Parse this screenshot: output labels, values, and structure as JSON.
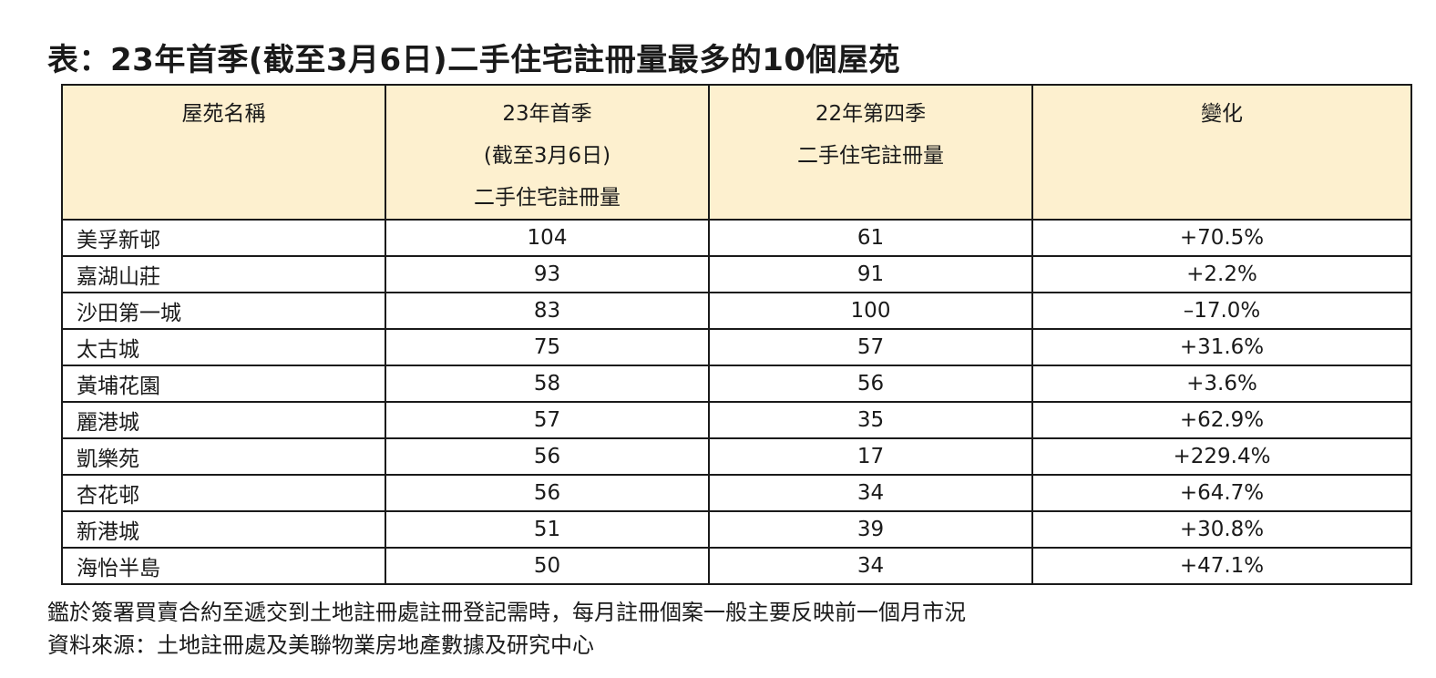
{
  "title": "表：23年首季(截至3月6日)二手住宅註冊量最多的10個屋苑",
  "table": {
    "headers": [
      [
        "屋苑名稱"
      ],
      [
        "23年首季",
        "(截至3月6日)",
        "二手住宅註冊量"
      ],
      [
        "22年第四季",
        "二手住宅註冊量"
      ],
      [
        "變化"
      ]
    ],
    "rows": [
      [
        "美孚新邨",
        "104",
        "61",
        "+70.5%"
      ],
      [
        "嘉湖山莊",
        "93",
        "91",
        "+2.2%"
      ],
      [
        "沙田第一城",
        "83",
        "100",
        "–17.0%"
      ],
      [
        "太古城",
        "75",
        "57",
        "+31.6%"
      ],
      [
        "黃埔花園",
        "58",
        "56",
        "+3.6%"
      ],
      [
        "麗港城",
        "57",
        "35",
        "+62.9%"
      ],
      [
        "凱樂苑",
        "56",
        "17",
        "+229.4%"
      ],
      [
        "杏花邨",
        "56",
        "34",
        "+64.7%"
      ],
      [
        "新港城",
        "51",
        "39",
        "+30.8%"
      ],
      [
        "海怡半島",
        "50",
        "34",
        "+47.1%"
      ]
    ]
  },
  "notes": [
    "鑑於簽署買賣合約至遞交到土地註冊處註冊登記需時，每月註冊個案一般主要反映前一個月市況",
    "資料來源：土地註冊處及美聯物業房地產數據及研究中心"
  ],
  "colors": {
    "header_bg": "#fdf0cf",
    "border": "#1a1a1a"
  }
}
